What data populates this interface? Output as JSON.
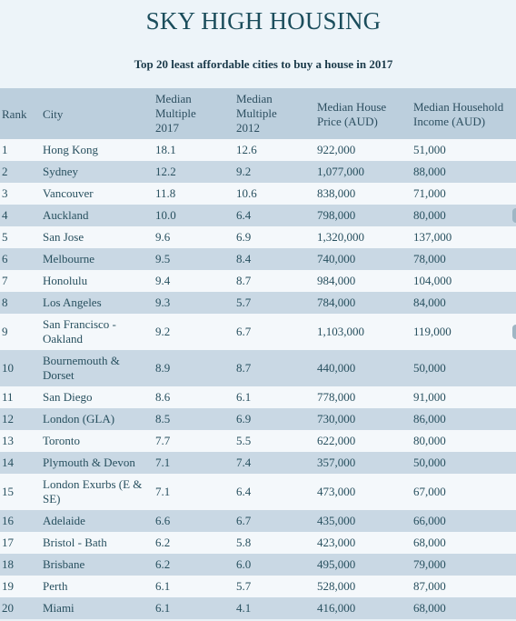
{
  "title": "SKY HIGH HOUSING",
  "subtitle": "Top 20 least affordable cities to buy a house in 2017",
  "columns": {
    "rank": "Rank",
    "city": "City",
    "m2017": "Median\nMultiple\n2017",
    "m2012": "Median\nMultiple\n2012",
    "price": "Median House\nPrice (AUD)",
    "income": "Median Household\nIncome (AUD)"
  },
  "rows": [
    {
      "rank": "1",
      "city": "Hong Kong",
      "m2017": "18.1",
      "m2012": "12.6",
      "price": "922,000",
      "income": "51,000"
    },
    {
      "rank": "2",
      "city": "Sydney",
      "m2017": "12.2",
      "m2012": "9.2",
      "price": "1,077,000",
      "income": "88,000"
    },
    {
      "rank": "3",
      "city": "Vancouver",
      "m2017": "11.8",
      "m2012": "10.6",
      "price": "838,000",
      "income": "71,000"
    },
    {
      "rank": "4",
      "city": "Auckland",
      "m2017": "10.0",
      "m2012": "6.4",
      "price": "798,000",
      "income": "80,000"
    },
    {
      "rank": "5",
      "city": "San Jose",
      "m2017": "9.6",
      "m2012": "6.9",
      "price": "1,320,000",
      "income": "137,000"
    },
    {
      "rank": "6",
      "city": "Melbourne",
      "m2017": "9.5",
      "m2012": "8.4",
      "price": "740,000",
      "income": "78,000"
    },
    {
      "rank": "7",
      "city": "Honolulu",
      "m2017": "9.4",
      "m2012": "8.7",
      "price": "984,000",
      "income": "104,000"
    },
    {
      "rank": "8",
      "city": "Los Angeles",
      "m2017": "9.3",
      "m2012": "5.7",
      "price": "784,000",
      "income": "84,000"
    },
    {
      "rank": "9",
      "city": "San Francisco - Oakland",
      "m2017": "9.2",
      "m2012": "6.7",
      "price": "1,103,000",
      "income": "119,000"
    },
    {
      "rank": "10",
      "city": "Bournemouth & Dorset",
      "m2017": "8.9",
      "m2012": "8.7",
      "price": "440,000",
      "income": "50,000"
    },
    {
      "rank": "11",
      "city": "San Diego",
      "m2017": "8.6",
      "m2012": "6.1",
      "price": "778,000",
      "income": "91,000"
    },
    {
      "rank": "12",
      "city": "London (GLA)",
      "m2017": "8.5",
      "m2012": "6.9",
      "price": "730,000",
      "income": "86,000"
    },
    {
      "rank": "13",
      "city": "Toronto",
      "m2017": "7.7",
      "m2012": "5.5",
      "price": "622,000",
      "income": "80,000"
    },
    {
      "rank": "14",
      "city": "Plymouth & Devon",
      "m2017": "7.1",
      "m2012": "7.4",
      "price": "357,000",
      "income": "50,000"
    },
    {
      "rank": "15",
      "city": "London Exurbs (E & SE)",
      "m2017": "7.1",
      "m2012": "6.4",
      "price": "473,000",
      "income": "67,000"
    },
    {
      "rank": "16",
      "city": "Adelaide",
      "m2017": "6.6",
      "m2012": "6.7",
      "price": "435,000",
      "income": "66,000"
    },
    {
      "rank": "17",
      "city": "Bristol - Bath",
      "m2017": "6.2",
      "m2012": "5.8",
      "price": "423,000",
      "income": "68,000"
    },
    {
      "rank": "18",
      "city": "Brisbane",
      "m2017": "6.2",
      "m2012": "6.0",
      "price": "495,000",
      "income": "79,000"
    },
    {
      "rank": "19",
      "city": "Perth",
      "m2017": "6.1",
      "m2012": "5.7",
      "price": "528,000",
      "income": "87,000"
    },
    {
      "rank": "20",
      "city": "Miami",
      "m2017": "6.1",
      "m2012": "4.1",
      "price": "416,000",
      "income": "68,000"
    }
  ]
}
